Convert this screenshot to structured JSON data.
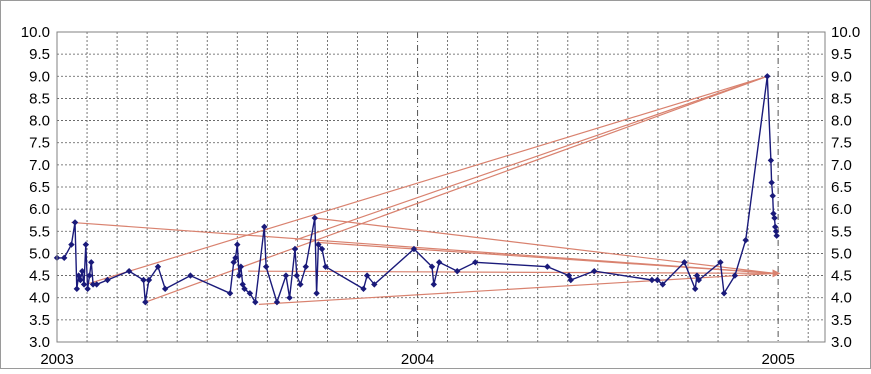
{
  "chart_data": {
    "type": "line",
    "title": "",
    "xlabel": "",
    "ylabel": "",
    "x_ticks": [
      "2003",
      "2004",
      "2005"
    ],
    "y_ticks": [
      "3.0",
      "3.5",
      "4.0",
      "4.5",
      "5.0",
      "5.5",
      "6.0",
      "6.5",
      "7.0",
      "7.5",
      "8.0",
      "8.5",
      "9.0",
      "9.5",
      "10.0"
    ],
    "xlim": [
      2003.0,
      2005.13
    ],
    "ylim": [
      3.0,
      10.0
    ],
    "grid": true,
    "legend": "none",
    "colors": {
      "series": "#1a1a7a",
      "overlay": "#d9826f",
      "grid": "#555555",
      "frame": "#808080"
    },
    "series": [
      {
        "points": [
          [
            2003.0,
            4.9
          ],
          [
            2003.02,
            4.9
          ],
          [
            2003.04,
            5.2
          ],
          [
            2003.05,
            5.7
          ],
          [
            2003.055,
            4.2
          ],
          [
            2003.06,
            4.5
          ],
          [
            2003.065,
            4.4
          ],
          [
            2003.07,
            4.6
          ],
          [
            2003.075,
            4.3
          ],
          [
            2003.08,
            5.2
          ],
          [
            2003.085,
            4.2
          ],
          [
            2003.09,
            4.5
          ],
          [
            2003.095,
            4.8
          ],
          [
            2003.1,
            4.3
          ],
          [
            2003.11,
            4.3
          ],
          [
            2003.14,
            4.4
          ],
          [
            2003.2,
            4.6
          ],
          [
            2003.24,
            4.4
          ],
          [
            2003.245,
            3.9
          ],
          [
            2003.255,
            4.4
          ],
          [
            2003.28,
            4.7
          ],
          [
            2003.3,
            4.2
          ],
          [
            2003.37,
            4.5
          ],
          [
            2003.48,
            4.1
          ],
          [
            2003.49,
            4.8
          ],
          [
            2003.495,
            4.9
          ],
          [
            2003.5,
            5.2
          ],
          [
            2003.505,
            4.5
          ],
          [
            2003.51,
            4.7
          ],
          [
            2003.515,
            4.3
          ],
          [
            2003.52,
            4.2
          ],
          [
            2003.535,
            4.1
          ],
          [
            2003.55,
            3.9
          ],
          [
            2003.575,
            5.6
          ],
          [
            2003.58,
            4.7
          ],
          [
            2003.61,
            3.9
          ],
          [
            2003.635,
            4.5
          ],
          [
            2003.645,
            4.0
          ],
          [
            2003.66,
            5.1
          ],
          [
            2003.665,
            4.5
          ],
          [
            2003.675,
            4.3
          ],
          [
            2003.69,
            4.7
          ],
          [
            2003.715,
            5.8
          ],
          [
            2003.72,
            4.1
          ],
          [
            2003.725,
            5.2
          ],
          [
            2003.735,
            5.1
          ],
          [
            2003.745,
            4.7
          ],
          [
            2003.85,
            4.2
          ],
          [
            2003.86,
            4.5
          ],
          [
            2003.88,
            4.3
          ],
          [
            2003.99,
            5.1
          ],
          [
            2004.04,
            4.7
          ],
          [
            2004.045,
            4.3
          ],
          [
            2004.06,
            4.8
          ],
          [
            2004.11,
            4.6
          ],
          [
            2004.16,
            4.8
          ],
          [
            2004.36,
            4.7
          ],
          [
            2004.42,
            4.5
          ],
          [
            2004.425,
            4.4
          ],
          [
            2004.49,
            4.6
          ],
          [
            2004.65,
            4.4
          ],
          [
            2004.665,
            4.4
          ],
          [
            2004.68,
            4.3
          ],
          [
            2004.74,
            4.8
          ],
          [
            2004.77,
            4.2
          ],
          [
            2004.775,
            4.5
          ],
          [
            2004.78,
            4.4
          ],
          [
            2004.84,
            4.8
          ],
          [
            2004.85,
            4.1
          ],
          [
            2004.88,
            4.5
          ],
          [
            2004.91,
            5.3
          ],
          [
            2004.97,
            9.0
          ],
          [
            2004.98,
            7.1
          ],
          [
            2004.982,
            6.6
          ],
          [
            2004.985,
            6.3
          ],
          [
            2004.987,
            5.9
          ],
          [
            2004.99,
            5.8
          ],
          [
            2004.992,
            5.6
          ],
          [
            2004.994,
            5.5
          ],
          [
            2004.996,
            5.4
          ]
        ]
      }
    ],
    "overlay_lines": [
      [
        [
          2003.04,
          5.7
        ],
        [
          2004.99,
          4.55
        ]
      ],
      [
        [
          2003.08,
          4.3
        ],
        [
          2004.97,
          9.0
        ]
      ],
      [
        [
          2003.245,
          3.9
        ],
        [
          2004.97,
          9.0
        ]
      ],
      [
        [
          2003.715,
          5.8
        ],
        [
          2004.99,
          4.55
        ]
      ],
      [
        [
          2003.72,
          5.25
        ],
        [
          2004.99,
          4.55
        ]
      ],
      [
        [
          2003.56,
          3.85
        ],
        [
          2004.99,
          4.55
        ]
      ],
      [
        [
          2003.53,
          4.6
        ],
        [
          2004.99,
          4.55
        ]
      ],
      [
        [
          2003.66,
          5.3
        ],
        [
          2004.97,
          9.0
        ]
      ]
    ]
  }
}
